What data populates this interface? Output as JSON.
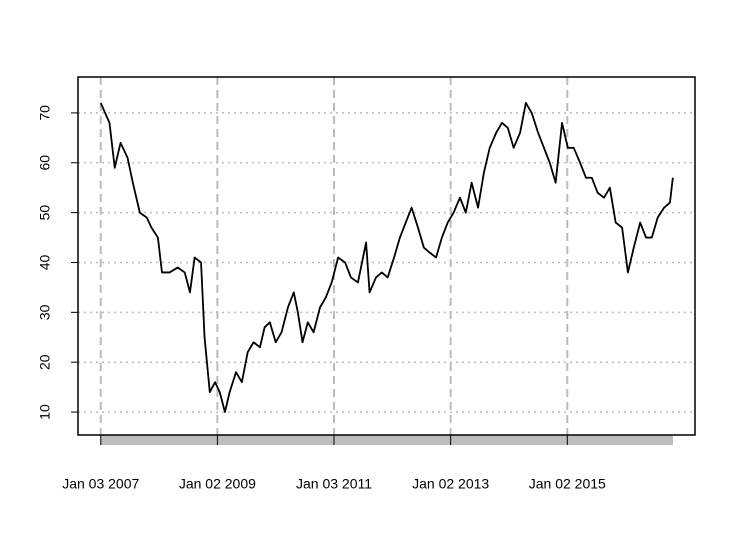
{
  "chart_data": {
    "type": "line",
    "x": [
      2007.0,
      2007.15,
      2007.24,
      2007.34,
      2007.46,
      2007.55,
      2007.67,
      2007.79,
      2007.87,
      2007.98,
      2008.05,
      2008.18,
      2008.32,
      2008.44,
      2008.53,
      2008.61,
      2008.72,
      2008.78,
      2008.87,
      2008.96,
      2009.04,
      2009.13,
      2009.21,
      2009.32,
      2009.42,
      2009.52,
      2009.62,
      2009.73,
      2009.81,
      2009.9,
      2010.0,
      2010.1,
      2010.21,
      2010.31,
      2010.38,
      2010.46,
      2010.55,
      2010.65,
      2010.76,
      2010.86,
      2010.96,
      2011.07,
      2011.19,
      2011.29,
      2011.41,
      2011.55,
      2011.61,
      2011.72,
      2011.82,
      2011.92,
      2012.03,
      2012.13,
      2012.23,
      2012.33,
      2012.44,
      2012.54,
      2012.64,
      2012.75,
      2012.85,
      2012.95,
      2013.05,
      2013.16,
      2013.26,
      2013.36,
      2013.47,
      2013.57,
      2013.67,
      2013.78,
      2013.88,
      2013.98,
      2014.08,
      2014.19,
      2014.29,
      2014.39,
      2014.5,
      2014.6,
      2014.7,
      2014.8,
      2014.91,
      2015.01,
      2015.11,
      2015.22,
      2015.32,
      2015.42,
      2015.52,
      2015.63,
      2015.73,
      2015.83,
      2015.94,
      2016.04,
      2016.14,
      2016.25,
      2016.35,
      2016.45,
      2016.55,
      2016.66,
      2016.76,
      2016.81
    ],
    "values": [
      72,
      68,
      59,
      64,
      61,
      56,
      50,
      49,
      47,
      45,
      38,
      38,
      39,
      38,
      34,
      41,
      40,
      25,
      14,
      16,
      14,
      10,
      14,
      18,
      16,
      22,
      24,
      23,
      27,
      28,
      24,
      26,
      31,
      34,
      30,
      24,
      28,
      26,
      31,
      33,
      36,
      41,
      40,
      37,
      36,
      44,
      34,
      37,
      38,
      37,
      41,
      45,
      48,
      51,
      47,
      43,
      42,
      41,
      45,
      48,
      50,
      53,
      50,
      56,
      51,
      58,
      63,
      66,
      68,
      67,
      63,
      66,
      72,
      70,
      66,
      63,
      60,
      56,
      68,
      63,
      63,
      60,
      57,
      57,
      54,
      53,
      55,
      48,
      47,
      38,
      43,
      48,
      45,
      45,
      49,
      51,
      52,
      57
    ],
    "color": "#000000",
    "xlim": [
      2006.61,
      2017.19
    ],
    "xticks": [
      {
        "value": 2007,
        "label": "Jan 03 2007"
      },
      {
        "value": 2009,
        "label": "Jan 02 2009"
      },
      {
        "value": 2011,
        "label": "Jan 03 2011"
      },
      {
        "value": 2013,
        "label": "Jan 02 2013"
      },
      {
        "value": 2015,
        "label": "Jan 02 2015"
      }
    ],
    "ylim": [
      5.4,
      77.2
    ],
    "yticks": [
      10,
      20,
      30,
      40,
      50,
      60,
      70
    ],
    "grid": true
  }
}
